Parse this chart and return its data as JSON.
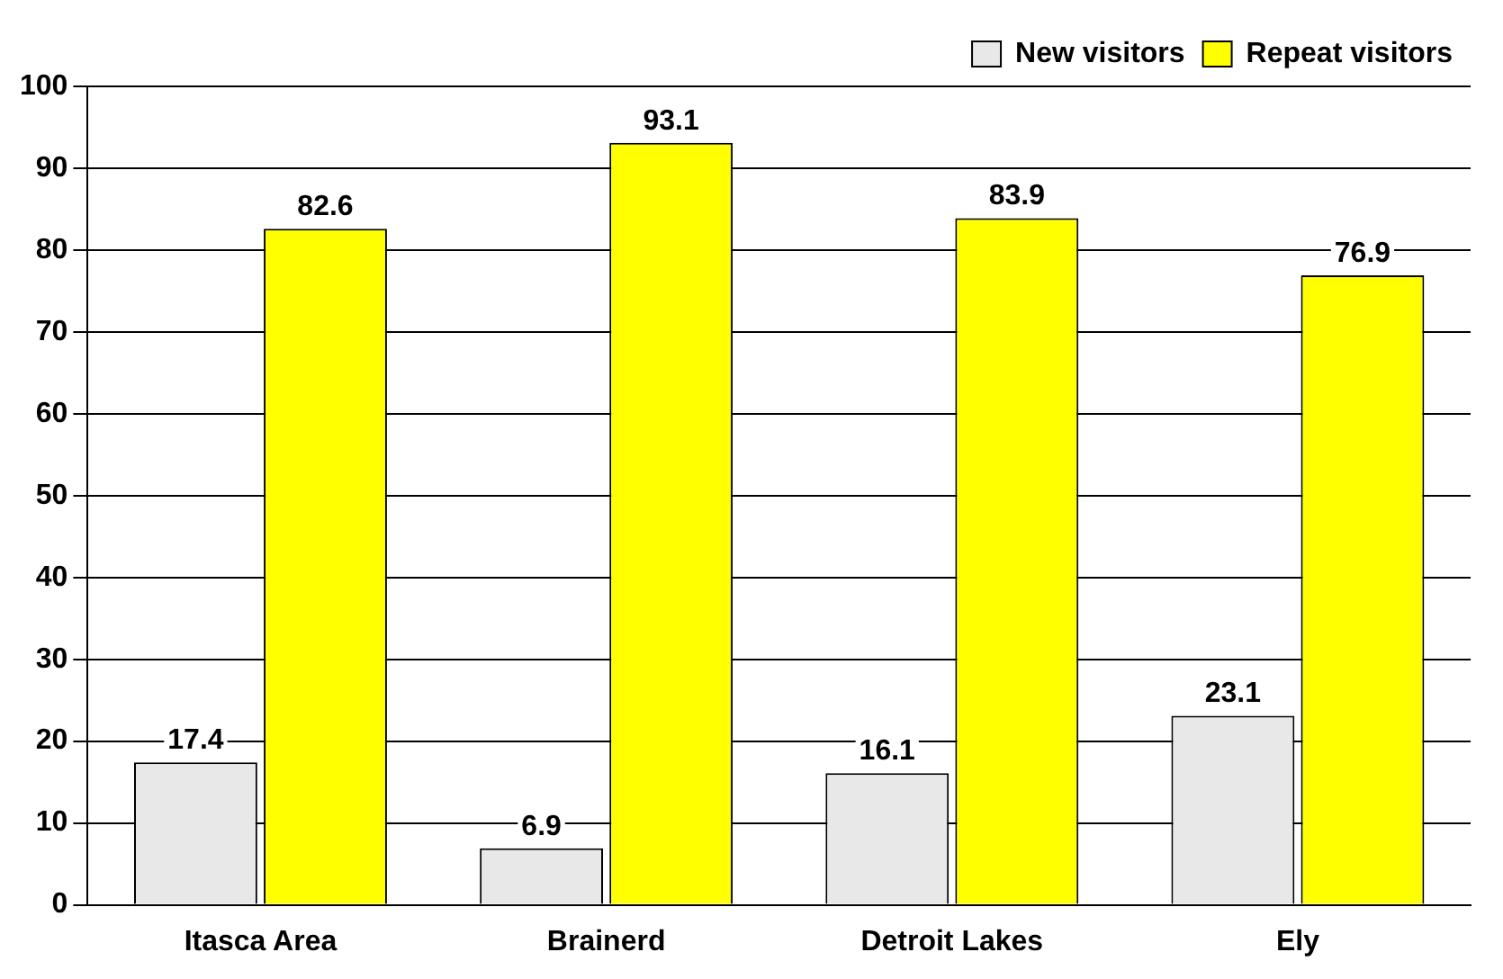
{
  "chart_data": {
    "type": "bar",
    "categories": [
      "Itasca Area",
      "Brainerd",
      "Detroit Lakes",
      "Ely"
    ],
    "series": [
      {
        "name": "New visitors",
        "color": "#e8e8e8",
        "values": [
          17.4,
          6.9,
          16.1,
          23.1
        ]
      },
      {
        "name": "Repeat visitors",
        "color": "#ffff00",
        "values": [
          82.6,
          93.1,
          83.9,
          76.9
        ]
      }
    ],
    "ylim": [
      0,
      100
    ],
    "yticks": [
      0,
      10,
      20,
      30,
      40,
      50,
      60,
      70,
      80,
      90,
      100
    ],
    "grid": "y",
    "legend": "top right",
    "data_labels": true
  }
}
